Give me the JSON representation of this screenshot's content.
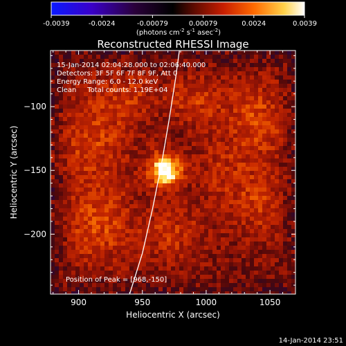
{
  "colorbar": {
    "tick_labels": [
      "-0.0039",
      "-0.0024",
      "-0.00079",
      "0.00079",
      "0.0024",
      "0.0039"
    ],
    "unit_label": "(photons cm",
    "unit_sup1": "-2",
    "unit_mid": " s",
    "unit_sup2": "-1",
    "unit_end": " asec",
    "unit_sup3": "-2",
    "unit_close": ")",
    "colors": [
      "#0a1aff",
      "#3a00c8",
      "#2a003a",
      "#000000",
      "#5a0a00",
      "#c81e00",
      "#ff6a00",
      "#ffd24a",
      "#ffffff"
    ]
  },
  "chart_data": {
    "type": "heatmap",
    "title": "Reconstructed RHESSI Image",
    "xlabel": "Heliocentric X (arcsec)",
    "ylabel": "Heliocentric Y (arcsec)",
    "xlim": [
      878,
      1070
    ],
    "ylim": [
      -247,
      -56
    ],
    "x_ticks": [
      900,
      950,
      1000,
      1050
    ],
    "y_ticks": [
      -100,
      -150,
      -200
    ],
    "x_tick_labels": [
      "900",
      "950",
      "1000",
      "1050"
    ],
    "y_tick_labels": [
      "−100",
      "−150",
      "−200"
    ],
    "peak": {
      "x": 968,
      "y": -150
    },
    "limb_curve": [
      [
        940,
        -247
      ],
      [
        950,
        -215
      ],
      [
        958,
        -180
      ],
      [
        965,
        -145
      ],
      [
        971,
        -110
      ],
      [
        976,
        -78
      ],
      [
        979,
        -56
      ]
    ],
    "annotations": {
      "time_range": "15-Jan-2014 02:04:28.000 to 02:06:40.000",
      "detectors": "Detectors: 3F 5F 6F 7F 8F 9F, Att 0",
      "energy_range": "Energy Range: 6.0 - 12.0 keV",
      "method_counts": "Clean     Total counts: 1.19E+04",
      "peak_position": "Position of Peak = [968,-150]"
    },
    "blobs": [
      {
        "x": 968,
        "y": -150,
        "sx": 9,
        "sy": 9,
        "amp": 1.0
      },
      {
        "x": 910,
        "y": -125,
        "sx": 22,
        "sy": 28,
        "amp": 0.32
      },
      {
        "x": 915,
        "y": -195,
        "sx": 20,
        "sy": 22,
        "amp": 0.34
      },
      {
        "x": 1040,
        "y": -110,
        "sx": 18,
        "sy": 22,
        "amp": 0.34
      },
      {
        "x": 1040,
        "y": -175,
        "sx": 16,
        "sy": 20,
        "amp": 0.28
      },
      {
        "x": 990,
        "y": -95,
        "sx": 16,
        "sy": 14,
        "amp": 0.28
      },
      {
        "x": 975,
        "y": -200,
        "sx": 18,
        "sy": 16,
        "amp": 0.26
      },
      {
        "x": 940,
        "y": -90,
        "sx": 14,
        "sy": 14,
        "amp": 0.22
      },
      {
        "x": 1010,
        "y": -150,
        "sx": 14,
        "sy": 20,
        "amp": 0.18
      }
    ]
  },
  "footer": {
    "timestamp": "14-Jan-2014 23:51"
  }
}
